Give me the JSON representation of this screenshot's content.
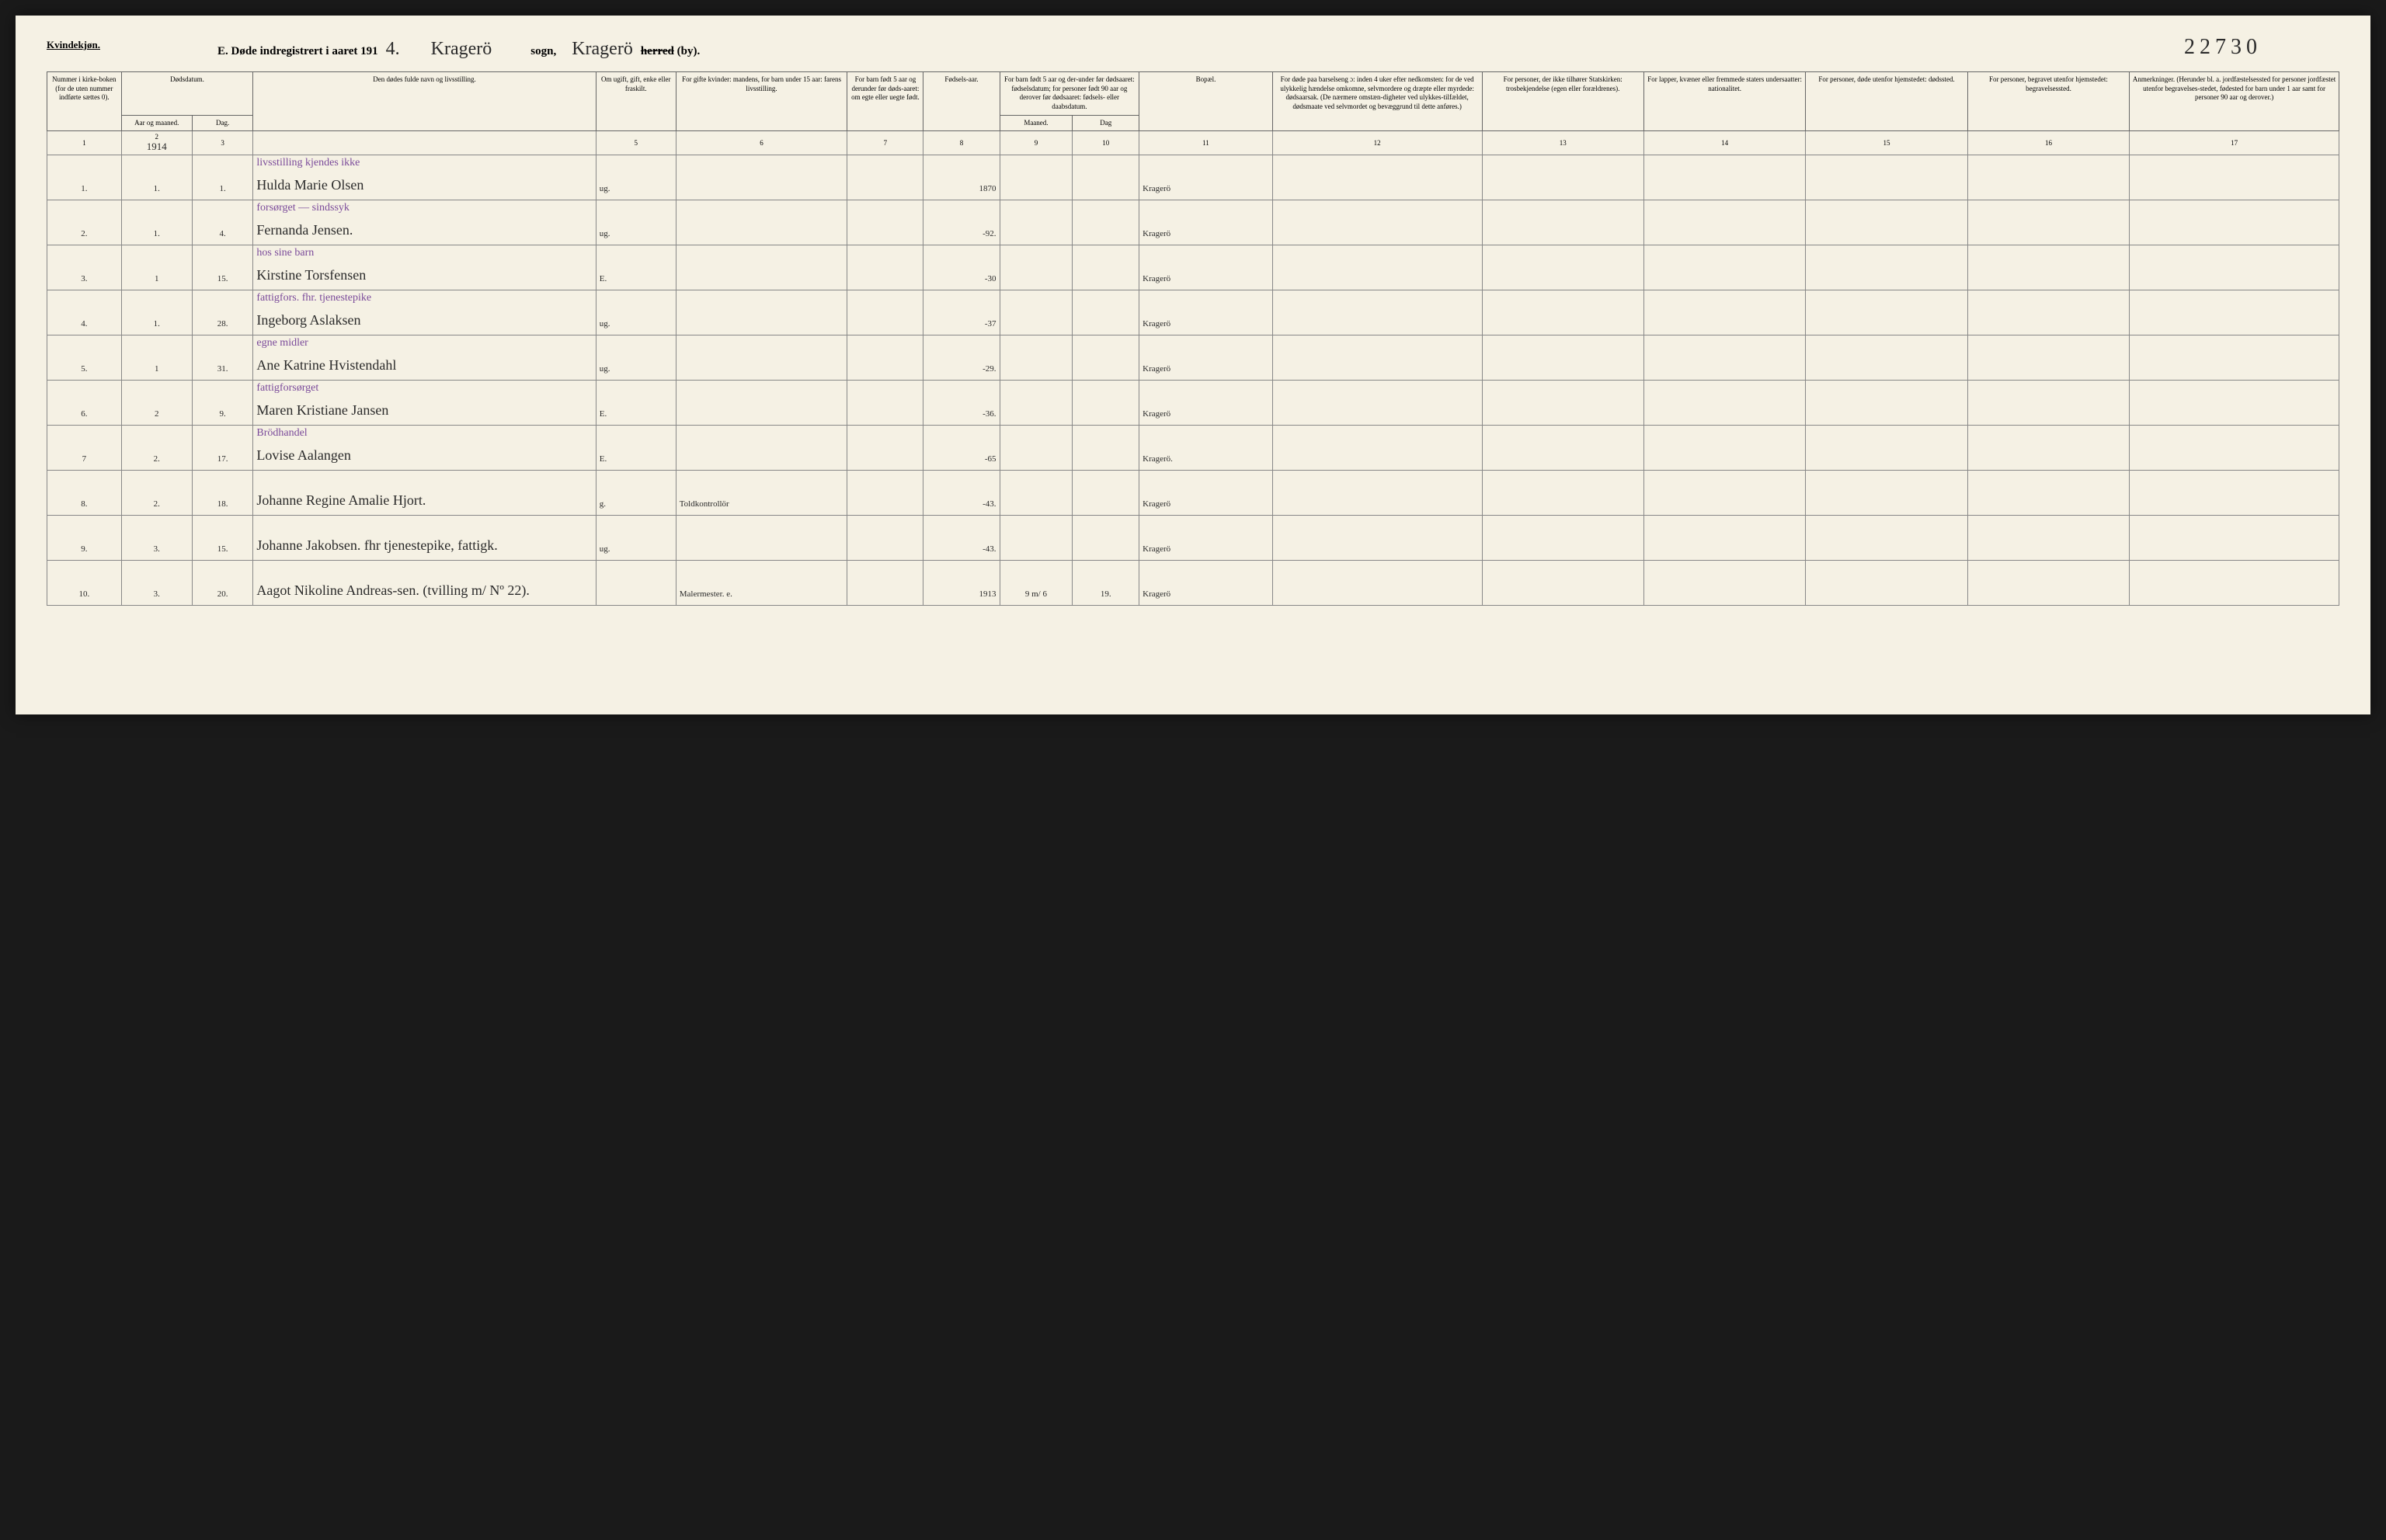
{
  "page": {
    "background_color": "#f5f1e4",
    "ink_color": "#2a2a2a",
    "purple_ink": "#7a4a9a"
  },
  "header": {
    "gender": "Kvindekjøn.",
    "title_prefix": "E.  Døde indregistrert i aaret 191",
    "year_suffix": "4.",
    "sogn_value": "Kragerö",
    "sogn_label": "sogn,",
    "herred_value": "Kragerö",
    "herred_struck": "herred",
    "herred_suffix": "(by).",
    "page_number": "22730"
  },
  "columns": {
    "c1": "Nummer i kirke-boken (for de uten nummer indførte sættes 0).",
    "c2": "Dødsdatum.",
    "c2a": "Aar og maaned.",
    "c2b": "Dag.",
    "c4": "Den dødes fulde navn og livsstilling.",
    "c5": "Om ugift, gift, enke eller fraskilt.",
    "c6": "For gifte kvinder: mandens, for barn under 15 aar: farens livsstilling.",
    "c7": "For barn født 5 aar og derunder før døds-aaret: om egte eller uegte født.",
    "c8": "Fødsels-aar.",
    "c9": "For barn født 5 aar og der-under før dødsaaret: fødselsdatum; for personer født 90 aar og derover før dødsaaret: fødsels- eller daabsdatum.",
    "c9a": "Maaned.",
    "c9b": "Dag",
    "c11": "Bopæl.",
    "c12": "For døde paa barselseng ɔ: inden 4 uker efter nedkomsten: for de ved ulykkelig hændelse omkomne, selvmordere og dræpte eller myrdede: dødsaarsak. (De nærmere omstæn-digheter ved ulykkes-tilfældet, dødsmaate ved selvmordet og bevæggrund til dette anføres.)",
    "c13": "For personer, der ikke tilhører Statskirken: trosbekjendelse (egen eller forældrenes).",
    "c14": "For lapper, kvæner eller fremmede staters undersaatter: nationalitet.",
    "c15": "For personer, døde utenfor hjemstedet: dødssted.",
    "c16": "For personer, begravet utenfor hjemstedet: begravelsessted.",
    "c17": "Anmerkninger. (Herunder bl. a. jordfæstelsessted for personer jordfæstet utenfor begravelses-stedet, fødested for barn under 1 aar samt for personer 90 aar og derover.)"
  },
  "colnums": [
    "1",
    "2",
    "3",
    "",
    "5",
    "6",
    "7",
    "8",
    "9",
    "10",
    "11",
    "12",
    "13",
    "14",
    "15",
    "16",
    "17"
  ],
  "year_header": "1914",
  "rows": [
    {
      "num": "1.",
      "month": "1.",
      "day": "1.",
      "occupation": "livsstilling kjendes ikke",
      "name": "Hulda Marie Olsen",
      "status": "ug.",
      "spouse": "",
      "birth": "1870",
      "md_m": "",
      "md_d": "",
      "residence": "Kragerö"
    },
    {
      "num": "2.",
      "month": "1.",
      "day": "4.",
      "occupation": "forsørget — sindssyk",
      "name": "Fernanda Jensen.",
      "status": "ug.",
      "spouse": "",
      "birth": "-92.",
      "md_m": "",
      "md_d": "",
      "residence": "Kragerö"
    },
    {
      "num": "3.",
      "month": "1",
      "day": "15.",
      "occupation": "hos sine barn",
      "name": "Kirstine Torsfensen",
      "status": "E.",
      "spouse": "",
      "birth": "-30",
      "md_m": "",
      "md_d": "",
      "residence": "Kragerö"
    },
    {
      "num": "4.",
      "month": "1.",
      "day": "28.",
      "occupation": "fattigfors. fhr. tjenestepike",
      "name": "Ingeborg Aslaksen",
      "status": "ug.",
      "spouse": "",
      "birth": "-37",
      "md_m": "",
      "md_d": "",
      "residence": "Kragerö"
    },
    {
      "num": "5.",
      "month": "1",
      "day": "31.",
      "occupation": "egne midler",
      "name": "Ane Katrine Hvistendahl",
      "status": "ug.",
      "spouse": "",
      "birth": "-29.",
      "md_m": "",
      "md_d": "",
      "residence": "Kragerö"
    },
    {
      "num": "6.",
      "month": "2",
      "day": "9.",
      "occupation": "fattigforsørget",
      "name": "Maren Kristiane Jansen",
      "status": "E.",
      "spouse": "",
      "birth": "-36.",
      "md_m": "",
      "md_d": "",
      "residence": "Kragerö"
    },
    {
      "num": "7",
      "month": "2.",
      "day": "17.",
      "occupation": "Brödhandel",
      "name": "Lovise Aalangen",
      "status": "E.",
      "spouse": "",
      "birth": "-65",
      "md_m": "",
      "md_d": "",
      "residence": "Kragerö."
    },
    {
      "num": "8.",
      "month": "2.",
      "day": "18.",
      "occupation": "",
      "name": "Johanne Regine Amalie Hjort.",
      "status": "g.",
      "spouse": "Toldkontrollör",
      "birth": "-43.",
      "md_m": "",
      "md_d": "",
      "residence": "Kragerö"
    },
    {
      "num": "9.",
      "month": "3.",
      "day": "15.",
      "occupation": "",
      "name": "Johanne Jakobsen. fhr tjenestepike, fattigk.",
      "status": "ug.",
      "spouse": "",
      "birth": "-43.",
      "md_m": "",
      "md_d": "",
      "residence": "Kragerö"
    },
    {
      "num": "10.",
      "month": "3.",
      "day": "20.",
      "occupation": "",
      "name": "Aagot Nikoline Andreas-sen. (tvilling m/ Nº 22).",
      "status": "",
      "spouse": "Malermester.",
      "spouse_suffix": "e.",
      "birth": "1913",
      "md_m": "9 m/ 6",
      "md_d": "19.",
      "residence": "Kragerö"
    }
  ]
}
